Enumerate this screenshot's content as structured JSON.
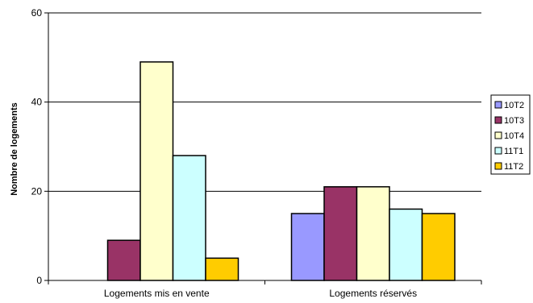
{
  "chart_data": {
    "type": "bar",
    "title": "",
    "xlabel": "",
    "ylabel": "Nombre de logements",
    "ylim": [
      0,
      60
    ],
    "yticks": [
      0,
      20,
      40,
      60
    ],
    "grid": true,
    "legend_position": "right",
    "categories": [
      "Logements mis en vente",
      "Logements réservés"
    ],
    "series": [
      {
        "name": "10T2",
        "color": "#9999ff",
        "values": [
          null,
          15
        ]
      },
      {
        "name": "10T3",
        "color": "#993366",
        "values": [
          9,
          21
        ]
      },
      {
        "name": "10T4",
        "color": "#ffffcc",
        "values": [
          49,
          21
        ]
      },
      {
        "name": "11T1",
        "color": "#ccffff",
        "values": [
          28,
          16
        ]
      },
      {
        "name": "11T2",
        "color": "#ffcc00",
        "values": [
          5,
          15
        ]
      }
    ]
  }
}
